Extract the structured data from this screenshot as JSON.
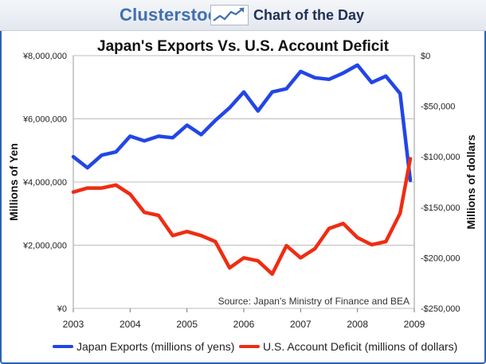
{
  "header": {
    "brand": "Clusterstock",
    "tagline": "Chart of the Day",
    "logo_icon": "trend-chart-icon"
  },
  "chart_data": {
    "type": "line",
    "title": "Japan's Exports Vs. U.S. Account Deficit",
    "ylabel": "Millions of Yen",
    "y2label": "Millions of dollars",
    "source": "Source: Japan's Ministry of Finance and BEA",
    "x_ticks": [
      "2003",
      "2004",
      "2005",
      "2006",
      "2007",
      "2008",
      "2009"
    ],
    "xlim": [
      2003,
      2009
    ],
    "ylim": [
      0,
      8000000
    ],
    "y_ticks": [
      "¥0",
      "¥2,000,000",
      "¥4,000,000",
      "¥6,000,000",
      "¥8,000,000"
    ],
    "y2lim": [
      -250000,
      0
    ],
    "y2_ticks": [
      "-$250,000",
      "-$200,000",
      "-$150,000",
      "-$100,000",
      "-$50,000",
      "$0"
    ],
    "grid": true,
    "legend_position": "bottom",
    "series": [
      {
        "name": "Japan Exports (millions of yens)",
        "axis": "left",
        "color": "#2246e6",
        "x": [
          2003.0,
          2003.25,
          2003.5,
          2003.75,
          2004.0,
          2004.25,
          2004.5,
          2004.75,
          2005.0,
          2005.25,
          2005.5,
          2005.75,
          2006.0,
          2006.25,
          2006.5,
          2006.75,
          2007.0,
          2007.25,
          2007.5,
          2007.75,
          2008.0,
          2008.25,
          2008.5,
          2008.75,
          2008.93
        ],
        "y": [
          4800000,
          4450000,
          4850000,
          4950000,
          5450000,
          5300000,
          5450000,
          5400000,
          5800000,
          5500000,
          5950000,
          6350000,
          6850000,
          6250000,
          6850000,
          6950000,
          7500000,
          7300000,
          7250000,
          7450000,
          7700000,
          7150000,
          7350000,
          6800000,
          4050000
        ]
      },
      {
        "name": "U.S. Account Deficit (millions of dollars)",
        "axis": "right",
        "color": "#ee2d12",
        "x": [
          2003.0,
          2003.25,
          2003.5,
          2003.75,
          2004.0,
          2004.25,
          2004.5,
          2004.75,
          2005.0,
          2005.25,
          2005.5,
          2005.75,
          2006.0,
          2006.25,
          2006.5,
          2006.75,
          2007.0,
          2007.25,
          2007.5,
          2007.75,
          2008.0,
          2008.25,
          2008.5,
          2008.75,
          2008.93
        ],
        "y": [
          -135000,
          -131000,
          -131000,
          -128000,
          -137000,
          -155000,
          -158000,
          -178000,
          -174000,
          -178000,
          -184000,
          -210000,
          -200000,
          -203000,
          -216000,
          -188000,
          -200000,
          -191000,
          -171000,
          -166000,
          -180000,
          -187000,
          -184000,
          -156000,
          -102000
        ]
      }
    ]
  }
}
